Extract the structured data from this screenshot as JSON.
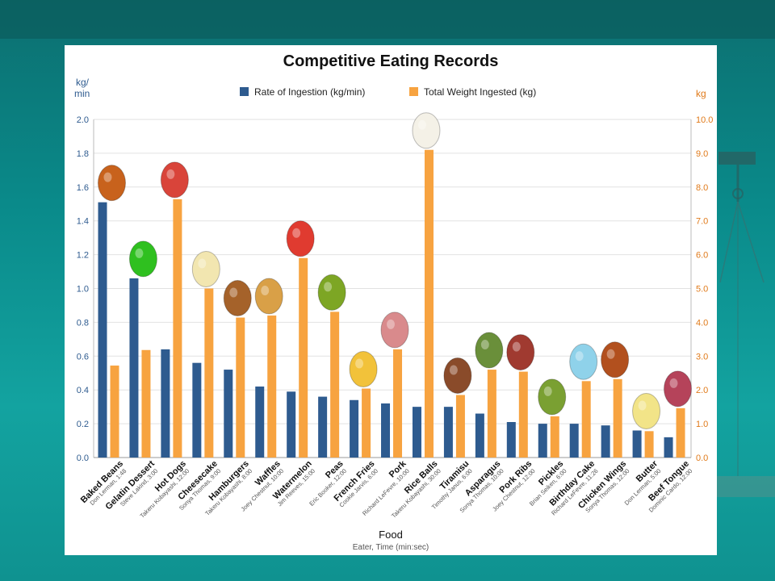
{
  "chart_data": {
    "type": "bar",
    "title": "Competitive Eating Records",
    "xlabel": "Food",
    "xlabel_sub": "Eater, Time (min:sec)",
    "y_left": {
      "unit_line1": "kg/",
      "unit_line2": "min",
      "lim": [
        0,
        2.0
      ],
      "ticks": [
        "0.0",
        "0.2",
        "0.4",
        "0.6",
        "0.8",
        "1.0",
        "1.2",
        "1.4",
        "1.6",
        "1.8",
        "2.0"
      ]
    },
    "y_right": {
      "unit": "kg",
      "lim": [
        0,
        10.0
      ],
      "ticks": [
        "0.0",
        "1.0",
        "2.0",
        "3.0",
        "4.0",
        "5.0",
        "6.0",
        "7.0",
        "8.0",
        "9.0",
        "10.0"
      ]
    },
    "grid": true,
    "legend_position": "top",
    "categories": [
      {
        "food": "Baked Beans",
        "sub": "Don Lerman, 1:48"
      },
      {
        "food": "Gelatin Dessert",
        "sub": "Steve Lakind, 3:00"
      },
      {
        "food": "Hot Dogs",
        "sub": "Takeru Kobayashi, 12:00"
      },
      {
        "food": "Cheesecake",
        "sub": "Sonya Thomas, 9:00"
      },
      {
        "food": "Hamburgers",
        "sub": "Takeru Kobayashi, 8:00"
      },
      {
        "food": "Waffles",
        "sub": "Joey Chestnut, 10:00"
      },
      {
        "food": "Watermelon",
        "sub": "Jim Reeves, 15:00"
      },
      {
        "food": "Peas",
        "sub": "Eric Booker, 12:00"
      },
      {
        "food": "French Fries",
        "sub": "Cookie Jarvis, 6:00"
      },
      {
        "food": "Pork",
        "sub": "Richard LeFevre, 10:00"
      },
      {
        "food": "Rice Balls",
        "sub": "Takeru Kobayashi, 30:00"
      },
      {
        "food": "Tiramisu",
        "sub": "Timothy Janus, 6:00"
      },
      {
        "food": "Asparagus",
        "sub": "Sonya Thomas, 10:00"
      },
      {
        "food": "Pork Ribs",
        "sub": "Joey Chestnut, 12:00"
      },
      {
        "food": "Pickles",
        "sub": "Brian Seiken, 6:00"
      },
      {
        "food": "Birthday Cake",
        "sub": "Richard LeFevre, 11:26"
      },
      {
        "food": "Chicken Wings",
        "sub": "Sonya Thomas, 12:00"
      },
      {
        "food": "Butter",
        "sub": "Don Lerman, 5:00"
      },
      {
        "food": "Beef Tongue",
        "sub": "Dominic Cardo, 12:00"
      }
    ],
    "series": [
      {
        "name": "Rate of Ingestion (kg/min)",
        "axis": "left",
        "color": "#2e5b8f",
        "values": [
          1.51,
          1.06,
          0.64,
          0.56,
          0.52,
          0.42,
          0.39,
          0.36,
          0.34,
          0.32,
          0.3,
          0.3,
          0.26,
          0.21,
          0.2,
          0.2,
          0.19,
          0.16,
          0.12
        ]
      },
      {
        "name": "Total Weight Ingested (kg)",
        "axis": "right",
        "color": "#f7a340",
        "values": [
          2.72,
          3.18,
          7.64,
          5.0,
          4.14,
          4.2,
          5.9,
          4.31,
          2.04,
          3.2,
          9.1,
          1.85,
          2.6,
          2.54,
          1.22,
          2.26,
          2.32,
          0.78,
          1.46
        ]
      }
    ],
    "food_icons": [
      "beans-icon",
      "gelatin-icon",
      "hot-dog-icon",
      "cheesecake-icon",
      "hamburger-icon",
      "waffle-icon",
      "watermelon-icon",
      "peas-icon",
      "french-fries-icon",
      "pork-icon",
      "rice-balls-icon",
      "tiramisu-icon",
      "asparagus-icon",
      "pork-ribs-icon",
      "pickle-icon",
      "birthday-cake-icon",
      "chicken-wing-icon",
      "butter-icon",
      "beef-tongue-icon"
    ]
  }
}
